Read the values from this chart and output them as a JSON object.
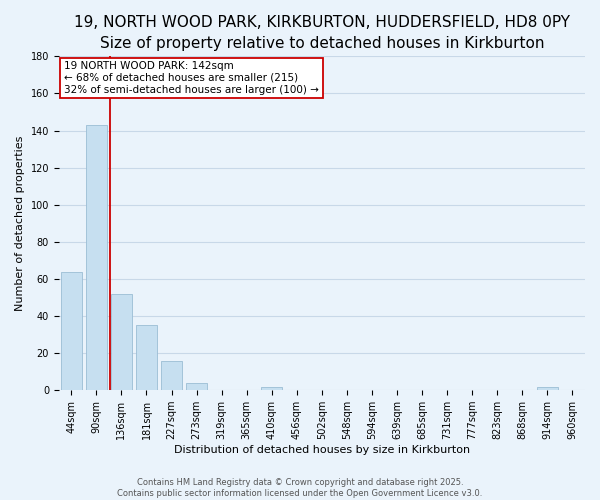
{
  "title": "19, NORTH WOOD PARK, KIRKBURTON, HUDDERSFIELD, HD8 0PY",
  "subtitle": "Size of property relative to detached houses in Kirkburton",
  "xlabel": "Distribution of detached houses by size in Kirkburton",
  "ylabel": "Number of detached properties",
  "footer_line1": "Contains HM Land Registry data © Crown copyright and database right 2025.",
  "footer_line2": "Contains public sector information licensed under the Open Government Licence v3.0.",
  "bar_labels": [
    "44sqm",
    "90sqm",
    "136sqm",
    "181sqm",
    "227sqm",
    "273sqm",
    "319sqm",
    "365sqm",
    "410sqm",
    "456sqm",
    "502sqm",
    "548sqm",
    "594sqm",
    "639sqm",
    "685sqm",
    "731sqm",
    "777sqm",
    "823sqm",
    "868sqm",
    "914sqm",
    "960sqm"
  ],
  "bar_values": [
    64,
    143,
    52,
    35,
    16,
    4,
    0,
    0,
    2,
    0,
    0,
    0,
    0,
    0,
    0,
    0,
    0,
    0,
    0,
    2,
    0
  ],
  "bar_color": "#c6dff0",
  "bar_edge_color": "#9bbdd4",
  "grid_color": "#c8d8e8",
  "background_color": "#eaf3fb",
  "vline_color": "#cc0000",
  "vline_x_index": 2,
  "annotation_line1": "19 NORTH WOOD PARK: 142sqm",
  "annotation_line2": "← 68% of detached houses are smaller (215)",
  "annotation_line3": "32% of semi-detached houses are larger (100) →",
  "annotation_box_color": "white",
  "annotation_box_edge_color": "#cc0000",
  "ylim": [
    0,
    180
  ],
  "yticks": [
    0,
    20,
    40,
    60,
    80,
    100,
    120,
    140,
    160,
    180
  ],
  "title_fontsize": 11,
  "subtitle_fontsize": 9.5,
  "label_fontsize": 8,
  "tick_fontsize": 7,
  "annotation_fontsize": 7.5,
  "footer_fontsize": 6
}
